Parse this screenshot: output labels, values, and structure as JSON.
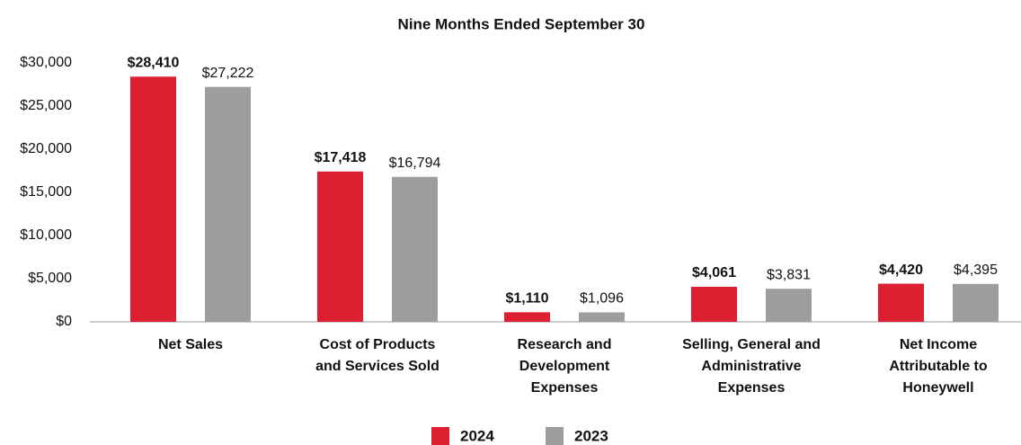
{
  "chart_data": {
    "type": "bar",
    "title": "Nine Months Ended September 30",
    "categories": [
      [
        "Net Sales"
      ],
      [
        "Cost of Products",
        "and Services Sold"
      ],
      [
        "Research and",
        "Development",
        "Expenses"
      ],
      [
        "Selling, General and",
        "Administrative",
        "Expenses"
      ],
      [
        "Net Income",
        "Attributable to",
        "Honeywell"
      ]
    ],
    "series": [
      {
        "name": "2024",
        "color": "#dc2032",
        "values": [
          28410,
          17418,
          1110,
          4061,
          4420
        ],
        "value_labels": [
          "$28,410",
          "$17,418",
          "$1,110",
          "$4,061",
          "$4,420"
        ]
      },
      {
        "name": "2023",
        "color": "#9d9d9d",
        "values": [
          27222,
          16794,
          1096,
          3831,
          4395
        ],
        "value_labels": [
          "$27,222",
          "$16,794",
          "$1,096",
          "$3,831",
          "$4,395"
        ]
      }
    ],
    "ylim": [
      0,
      30000
    ],
    "yticks": [
      {
        "value": 0,
        "label": "$0"
      },
      {
        "value": 5000,
        "label": "$5,000"
      },
      {
        "value": 10000,
        "label": "$10,000"
      },
      {
        "value": 15000,
        "label": "$15,000"
      },
      {
        "value": 20000,
        "label": "$20,000"
      },
      {
        "value": 25000,
        "label": "$25,000"
      },
      {
        "value": 30000,
        "label": "$30,000"
      }
    ],
    "grid": false,
    "legend": "bottom"
  }
}
